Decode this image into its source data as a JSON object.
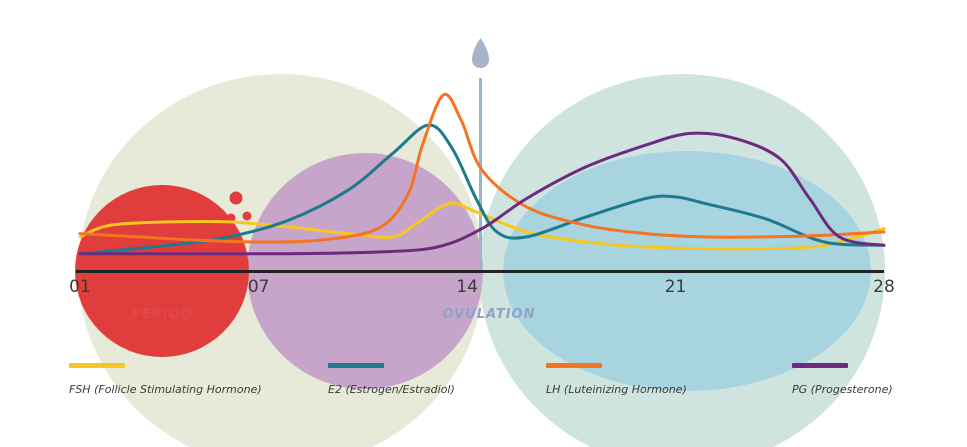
{
  "chart_data": {
    "type": "line",
    "x_ticks": [
      "01",
      "07",
      "14",
      "21",
      "28"
    ],
    "xlim": [
      1,
      28
    ],
    "phases": [
      {
        "label": "PERIOD",
        "color": "#e04848"
      },
      {
        "label": "OVULATION",
        "color": "#8ea3c7"
      }
    ],
    "series": [
      {
        "name": "FSH (Follicle Stimulating Hormone)",
        "color": "#f8c61e",
        "points": [
          [
            1,
            0.15
          ],
          [
            2,
            0.22
          ],
          [
            4,
            0.24
          ],
          [
            6,
            0.24
          ],
          [
            8,
            0.21
          ],
          [
            10,
            0.17
          ],
          [
            11.5,
            0.15
          ],
          [
            12.3,
            0.23
          ],
          [
            13.4,
            0.35
          ],
          [
            14.3,
            0.3
          ],
          [
            16,
            0.18
          ],
          [
            18,
            0.12
          ],
          [
            20,
            0.09
          ],
          [
            22,
            0.08
          ],
          [
            24,
            0.08
          ],
          [
            26,
            0.1
          ],
          [
            28,
            0.2
          ]
        ]
      },
      {
        "name": "E2 (Estrogen/Estradiol)",
        "color": "#1e7a8c",
        "points": [
          [
            1,
            0.05
          ],
          [
            4,
            0.1
          ],
          [
            6,
            0.15
          ],
          [
            8,
            0.25
          ],
          [
            10,
            0.43
          ],
          [
            11.5,
            0.65
          ],
          [
            12.7,
            0.82
          ],
          [
            13.5,
            0.68
          ],
          [
            14.3,
            0.38
          ],
          [
            15,
            0.18
          ],
          [
            16,
            0.15
          ],
          [
            18,
            0.27
          ],
          [
            20,
            0.38
          ],
          [
            21,
            0.39
          ],
          [
            22,
            0.35
          ],
          [
            24,
            0.26
          ],
          [
            26,
            0.12
          ],
          [
            28,
            0.1
          ]
        ]
      },
      {
        "name": "LH (Luteinizing Hormone)",
        "color": "#f47420",
        "points": [
          [
            1,
            0.17
          ],
          [
            3,
            0.15
          ],
          [
            5,
            0.13
          ],
          [
            7,
            0.12
          ],
          [
            9,
            0.13
          ],
          [
            11,
            0.2
          ],
          [
            12,
            0.4
          ],
          [
            12.5,
            0.7
          ],
          [
            13.2,
            1.0
          ],
          [
            13.8,
            0.85
          ],
          [
            14.5,
            0.55
          ],
          [
            16,
            0.33
          ],
          [
            18,
            0.22
          ],
          [
            20,
            0.17
          ],
          [
            22,
            0.15
          ],
          [
            24,
            0.15
          ],
          [
            26,
            0.16
          ],
          [
            28,
            0.18
          ]
        ]
      },
      {
        "name": "PG (Progesterone)",
        "color": "#6e2a7e",
        "points": [
          [
            1,
            0.05
          ],
          [
            4,
            0.05
          ],
          [
            8,
            0.05
          ],
          [
            11,
            0.06
          ],
          [
            13,
            0.09
          ],
          [
            14.5,
            0.2
          ],
          [
            16,
            0.38
          ],
          [
            18,
            0.57
          ],
          [
            20,
            0.7
          ],
          [
            21.5,
            0.77
          ],
          [
            23,
            0.74
          ],
          [
            24.5,
            0.62
          ],
          [
            25.5,
            0.38
          ],
          [
            26.5,
            0.15
          ],
          [
            28,
            0.1
          ]
        ]
      }
    ]
  }
}
